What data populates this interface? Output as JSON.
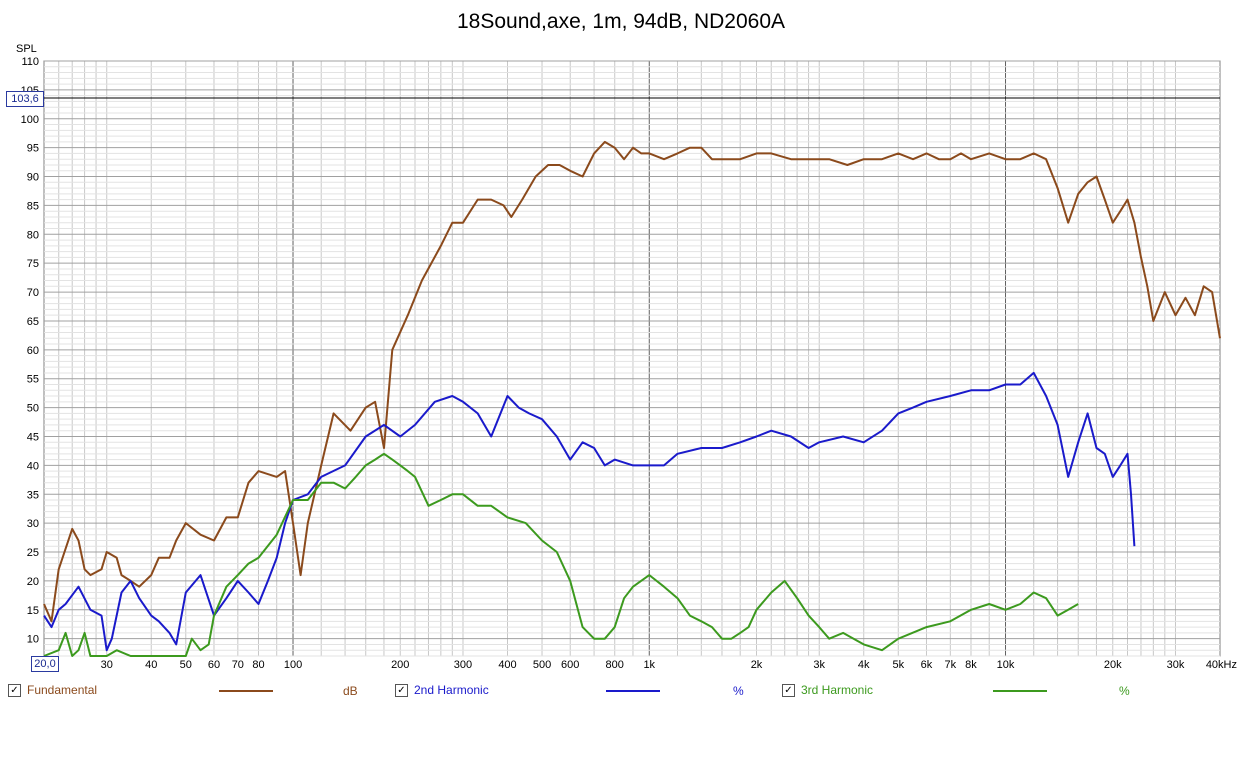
{
  "title": "18Sound,axe, 1m, 94dB, ND2060A",
  "cursor_readout": "103,6",
  "x_start_readout": "20,0",
  "chart_data": {
    "type": "line",
    "title": "18Sound,axe, 1m, 94dB, ND2060A",
    "ylabel": "SPL",
    "xlabel": "",
    "x_scale": "log",
    "xlim": [
      20,
      40000
    ],
    "ylim": [
      7,
      110
    ],
    "grid": true,
    "cursor_y": 103.6,
    "y_ticks": [
      10,
      15,
      20,
      25,
      30,
      35,
      40,
      45,
      50,
      55,
      60,
      65,
      70,
      75,
      80,
      85,
      90,
      95,
      100,
      105,
      110
    ],
    "x_ticks": [
      {
        "v": 30,
        "label": "30"
      },
      {
        "v": 40,
        "label": "40"
      },
      {
        "v": 50,
        "label": "50"
      },
      {
        "v": 60,
        "label": "60"
      },
      {
        "v": 70,
        "label": "70"
      },
      {
        "v": 80,
        "label": "80"
      },
      {
        "v": 100,
        "label": "100"
      },
      {
        "v": 200,
        "label": "200"
      },
      {
        "v": 300,
        "label": "300"
      },
      {
        "v": 400,
        "label": "400"
      },
      {
        "v": 500,
        "label": "500"
      },
      {
        "v": 600,
        "label": "600"
      },
      {
        "v": 800,
        "label": "800"
      },
      {
        "v": 1000,
        "label": "1k"
      },
      {
        "v": 2000,
        "label": "2k"
      },
      {
        "v": 3000,
        "label": "3k"
      },
      {
        "v": 4000,
        "label": "4k"
      },
      {
        "v": 5000,
        "label": "5k"
      },
      {
        "v": 6000,
        "label": "6k"
      },
      {
        "v": 7000,
        "label": "7k"
      },
      {
        "v": 8000,
        "label": "8k"
      },
      {
        "v": 10000,
        "label": "10k"
      },
      {
        "v": 20000,
        "label": "20k"
      },
      {
        "v": 30000,
        "label": "30k"
      },
      {
        "v": 40000,
        "label": "40kHz"
      }
    ],
    "series": [
      {
        "name": "Fundamental",
        "unit": "dB",
        "color": "#8b4a1c",
        "points": [
          [
            20,
            16
          ],
          [
            21,
            13
          ],
          [
            22,
            22
          ],
          [
            24,
            29
          ],
          [
            25,
            27
          ],
          [
            26,
            22
          ],
          [
            27,
            21
          ],
          [
            29,
            22
          ],
          [
            30,
            25
          ],
          [
            32,
            24
          ],
          [
            33,
            21
          ],
          [
            35,
            20
          ],
          [
            37,
            19
          ],
          [
            40,
            21
          ],
          [
            42,
            24
          ],
          [
            45,
            24
          ],
          [
            47,
            27
          ],
          [
            50,
            30
          ],
          [
            55,
            28
          ],
          [
            60,
            27
          ],
          [
            65,
            31
          ],
          [
            70,
            31
          ],
          [
            75,
            37
          ],
          [
            80,
            39
          ],
          [
            90,
            38
          ],
          [
            95,
            39
          ],
          [
            100,
            30
          ],
          [
            105,
            21
          ],
          [
            110,
            30
          ],
          [
            120,
            40
          ],
          [
            130,
            49
          ],
          [
            145,
            46
          ],
          [
            160,
            50
          ],
          [
            170,
            51
          ],
          [
            180,
            43
          ],
          [
            190,
            60
          ],
          [
            210,
            66
          ],
          [
            230,
            72
          ],
          [
            260,
            78
          ],
          [
            280,
            82
          ],
          [
            300,
            82
          ],
          [
            330,
            86
          ],
          [
            360,
            86
          ],
          [
            390,
            85
          ],
          [
            410,
            83
          ],
          [
            440,
            86
          ],
          [
            480,
            90
          ],
          [
            520,
            92
          ],
          [
            560,
            92
          ],
          [
            600,
            91
          ],
          [
            650,
            90
          ],
          [
            700,
            94
          ],
          [
            750,
            96
          ],
          [
            800,
            95
          ],
          [
            850,
            93
          ],
          [
            900,
            95
          ],
          [
            950,
            94
          ],
          [
            1000,
            94
          ],
          [
            1100,
            93
          ],
          [
            1200,
            94
          ],
          [
            1300,
            95
          ],
          [
            1400,
            95
          ],
          [
            1500,
            93
          ],
          [
            1600,
            93
          ],
          [
            1800,
            93
          ],
          [
            2000,
            94
          ],
          [
            2200,
            94
          ],
          [
            2500,
            93
          ],
          [
            2800,
            93
          ],
          [
            3200,
            93
          ],
          [
            3600,
            92
          ],
          [
            4000,
            93
          ],
          [
            4500,
            93
          ],
          [
            5000,
            94
          ],
          [
            5500,
            93
          ],
          [
            6000,
            94
          ],
          [
            6500,
            93
          ],
          [
            7000,
            93
          ],
          [
            7500,
            94
          ],
          [
            8000,
            93
          ],
          [
            9000,
            94
          ],
          [
            10000,
            93
          ],
          [
            11000,
            93
          ],
          [
            12000,
            94
          ],
          [
            13000,
            93
          ],
          [
            14000,
            88
          ],
          [
            15000,
            82
          ],
          [
            16000,
            87
          ],
          [
            17000,
            89
          ],
          [
            18000,
            90
          ],
          [
            19000,
            86
          ],
          [
            20000,
            82
          ],
          [
            21000,
            84
          ],
          [
            22000,
            86
          ],
          [
            23000,
            82
          ],
          [
            24000,
            76
          ],
          [
            25000,
            71
          ],
          [
            26000,
            65
          ],
          [
            28000,
            70
          ],
          [
            30000,
            66
          ],
          [
            32000,
            69
          ],
          [
            34000,
            66
          ],
          [
            36000,
            71
          ],
          [
            38000,
            70
          ],
          [
            40000,
            62
          ]
        ]
      },
      {
        "name": "2nd Harmonic",
        "unit": "%",
        "color": "#1a1acb",
        "points": [
          [
            20,
            14
          ],
          [
            21,
            12
          ],
          [
            22,
            15
          ],
          [
            23,
            16
          ],
          [
            25,
            19
          ],
          [
            27,
            15
          ],
          [
            29,
            14
          ],
          [
            30,
            8
          ],
          [
            31,
            10
          ],
          [
            33,
            18
          ],
          [
            35,
            20
          ],
          [
            37,
            17
          ],
          [
            40,
            14
          ],
          [
            42,
            13
          ],
          [
            45,
            11
          ],
          [
            47,
            9
          ],
          [
            50,
            18
          ],
          [
            55,
            21
          ],
          [
            60,
            14
          ],
          [
            65,
            17
          ],
          [
            70,
            20
          ],
          [
            75,
            18
          ],
          [
            80,
            16
          ],
          [
            85,
            20
          ],
          [
            90,
            24
          ],
          [
            95,
            30
          ],
          [
            100,
            34
          ],
          [
            110,
            35
          ],
          [
            120,
            38
          ],
          [
            140,
            40
          ],
          [
            160,
            45
          ],
          [
            180,
            47
          ],
          [
            200,
            45
          ],
          [
            220,
            47
          ],
          [
            250,
            51
          ],
          [
            280,
            52
          ],
          [
            300,
            51
          ],
          [
            330,
            49
          ],
          [
            360,
            45
          ],
          [
            400,
            52
          ],
          [
            430,
            50
          ],
          [
            460,
            49
          ],
          [
            500,
            48
          ],
          [
            550,
            45
          ],
          [
            600,
            41
          ],
          [
            650,
            44
          ],
          [
            700,
            43
          ],
          [
            750,
            40
          ],
          [
            800,
            41
          ],
          [
            900,
            40
          ],
          [
            1000,
            40
          ],
          [
            1100,
            40
          ],
          [
            1200,
            42
          ],
          [
            1400,
            43
          ],
          [
            1600,
            43
          ],
          [
            1800,
            44
          ],
          [
            2000,
            45
          ],
          [
            2200,
            46
          ],
          [
            2500,
            45
          ],
          [
            2800,
            43
          ],
          [
            3000,
            44
          ],
          [
            3500,
            45
          ],
          [
            4000,
            44
          ],
          [
            4500,
            46
          ],
          [
            5000,
            49
          ],
          [
            5500,
            50
          ],
          [
            6000,
            51
          ],
          [
            7000,
            52
          ],
          [
            8000,
            53
          ],
          [
            9000,
            53
          ],
          [
            10000,
            54
          ],
          [
            11000,
            54
          ],
          [
            12000,
            56
          ],
          [
            13000,
            52
          ],
          [
            14000,
            47
          ],
          [
            15000,
            38
          ],
          [
            16000,
            44
          ],
          [
            17000,
            49
          ],
          [
            18000,
            43
          ],
          [
            19000,
            42
          ],
          [
            20000,
            38
          ],
          [
            21000,
            40
          ],
          [
            22000,
            42
          ],
          [
            22500,
            35
          ],
          [
            23000,
            26
          ]
        ]
      },
      {
        "name": "3rd Harmonic",
        "unit": "%",
        "color": "#3c9a1e",
        "points": [
          [
            20,
            7
          ],
          [
            22,
            8
          ],
          [
            23,
            11
          ],
          [
            24,
            7
          ],
          [
            25,
            8
          ],
          [
            26,
            11
          ],
          [
            27,
            7
          ],
          [
            30,
            7
          ],
          [
            32,
            8
          ],
          [
            35,
            7
          ],
          [
            40,
            7
          ],
          [
            45,
            7
          ],
          [
            50,
            7
          ],
          [
            52,
            10
          ],
          [
            55,
            8
          ],
          [
            58,
            9
          ],
          [
            60,
            14
          ],
          [
            65,
            19
          ],
          [
            70,
            21
          ],
          [
            75,
            23
          ],
          [
            80,
            24
          ],
          [
            90,
            28
          ],
          [
            100,
            34
          ],
          [
            110,
            34
          ],
          [
            120,
            37
          ],
          [
            130,
            37
          ],
          [
            140,
            36
          ],
          [
            150,
            38
          ],
          [
            160,
            40
          ],
          [
            170,
            41
          ],
          [
            180,
            42
          ],
          [
            190,
            41
          ],
          [
            200,
            40
          ],
          [
            210,
            39
          ],
          [
            220,
            38
          ],
          [
            240,
            33
          ],
          [
            260,
            34
          ],
          [
            280,
            35
          ],
          [
            300,
            35
          ],
          [
            330,
            33
          ],
          [
            360,
            33
          ],
          [
            400,
            31
          ],
          [
            450,
            30
          ],
          [
            500,
            27
          ],
          [
            550,
            25
          ],
          [
            600,
            20
          ],
          [
            650,
            12
          ],
          [
            700,
            10
          ],
          [
            750,
            10
          ],
          [
            800,
            12
          ],
          [
            850,
            17
          ],
          [
            900,
            19
          ],
          [
            1000,
            21
          ],
          [
            1100,
            19
          ],
          [
            1200,
            17
          ],
          [
            1300,
            14
          ],
          [
            1400,
            13
          ],
          [
            1500,
            12
          ],
          [
            1600,
            10
          ],
          [
            1700,
            10
          ],
          [
            1800,
            11
          ],
          [
            1900,
            12
          ],
          [
            2000,
            15
          ],
          [
            2200,
            18
          ],
          [
            2400,
            20
          ],
          [
            2600,
            17
          ],
          [
            2800,
            14
          ],
          [
            3000,
            12
          ],
          [
            3200,
            10
          ],
          [
            3500,
            11
          ],
          [
            4000,
            9
          ],
          [
            4500,
            8
          ],
          [
            5000,
            10
          ],
          [
            6000,
            12
          ],
          [
            7000,
            13
          ],
          [
            8000,
            15
          ],
          [
            9000,
            16
          ],
          [
            10000,
            15
          ],
          [
            11000,
            16
          ],
          [
            12000,
            18
          ],
          [
            13000,
            17
          ],
          [
            14000,
            14
          ],
          [
            15000,
            15
          ],
          [
            16000,
            16
          ]
        ]
      }
    ]
  },
  "legend": [
    {
      "label": "Fundamental",
      "unit": "dB",
      "color": "#8b4a1c",
      "checked": "✓"
    },
    {
      "label": "2nd Harmonic",
      "unit": "%",
      "color": "#1a1acb",
      "checked": "✓"
    },
    {
      "label": "3rd Harmonic",
      "unit": "%",
      "color": "#3c9a1e",
      "checked": "✓"
    }
  ]
}
